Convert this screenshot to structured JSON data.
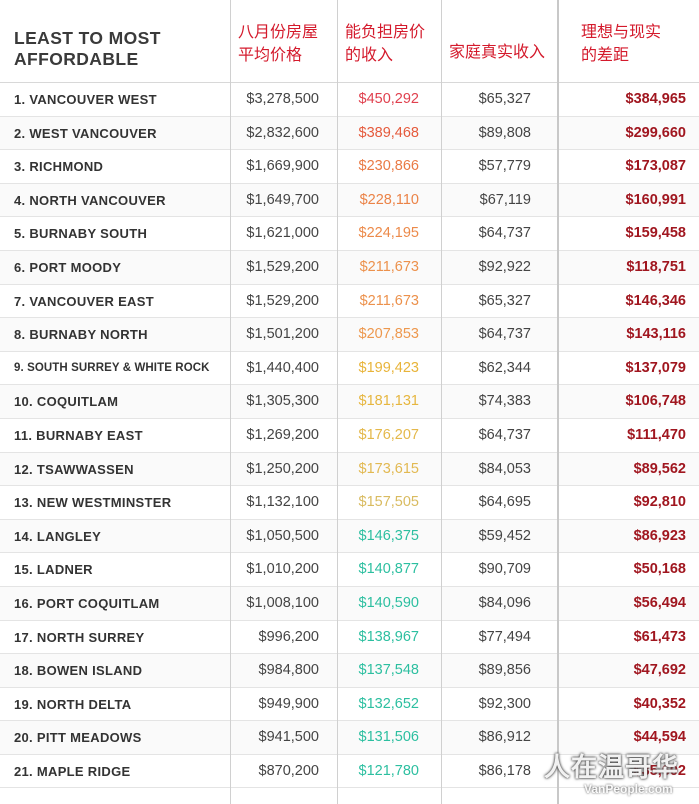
{
  "header": {
    "title_line1": "LEAST TO MOST",
    "title_line2": "AFFORDABLE",
    "col_price_line1": "八月份房屋",
    "col_price_line2": "平均价格",
    "col_afford_line1": "能负担房价",
    "col_afford_line2": "的收入",
    "col_income": "家庭真实收入",
    "col_gap_line1": "理想与现实",
    "col_gap_line2": "的差距"
  },
  "rows": [
    {
      "name": "1. VANCOUVER WEST",
      "price": "$3,278,500",
      "afford": "$450,292",
      "income": "$65,327",
      "gap": "$384,965",
      "afford_color": "#e0404e"
    },
    {
      "name": "2. WEST VANCOUVER",
      "price": "$2,832,600",
      "afford": "$389,468",
      "income": "$89,808",
      "gap": "$299,660",
      "afford_color": "#e55a3c"
    },
    {
      "name": "3. RICHMOND",
      "price": "$1,669,900",
      "afford": "$230,866",
      "income": "$57,779",
      "gap": "$173,087",
      "afford_color": "#e97a45"
    },
    {
      "name": "4. NORTH VANCOUVER",
      "price": "$1,649,700",
      "afford": "$228,110",
      "income": "$67,119",
      "gap": "$160,991",
      "afford_color": "#eb8347"
    },
    {
      "name": "5. BURNABY SOUTH",
      "price": "$1,621,000",
      "afford": "$224,195",
      "income": "$64,737",
      "gap": "$159,458",
      "afford_color": "#ec8a4a"
    },
    {
      "name": "6. PORT MOODY",
      "price": "$1,529,200",
      "afford": "$211,673",
      "income": "$92,922",
      "gap": "$118,751",
      "afford_color": "#ec914c"
    },
    {
      "name": "7. VANCOUVER EAST",
      "price": "$1,529,200",
      "afford": "$211,673",
      "income": "$65,327",
      "gap": "$146,346",
      "afford_color": "#ec914c"
    },
    {
      "name": "8. BURNABY NORTH",
      "price": "$1,501,200",
      "afford": "$207,853",
      "income": "$64,737",
      "gap": "$143,116",
      "afford_color": "#ed984e"
    },
    {
      "name": "9. SOUTH SURREY & WHITE ROCK",
      "price": "$1,440,400",
      "afford": "$199,423",
      "income": "$62,344",
      "gap": "$137,079",
      "afford_color": "#e8b43a",
      "small": true
    },
    {
      "name": "10. COQUITLAM",
      "price": "$1,305,300",
      "afford": "$181,131",
      "income": "$74,383",
      "gap": "$106,748",
      "afford_color": "#e6b63f"
    },
    {
      "name": "11. BURNABY EAST",
      "price": "$1,269,200",
      "afford": "$176,207",
      "income": "$64,737",
      "gap": "$111,470",
      "afford_color": "#e4b84a"
    },
    {
      "name": "12. TSAWWASSEN",
      "price": "$1,250,200",
      "afford": "$173,615",
      "income": "$84,053",
      "gap": "$89,562",
      "afford_color": "#e2b952"
    },
    {
      "name": "13. NEW WESTMINSTER",
      "price": "$1,132,100",
      "afford": "$157,505",
      "income": "$64,695",
      "gap": "$92,810",
      "afford_color": "#d9bb60"
    },
    {
      "name": "14. LANGLEY",
      "price": "$1,050,500",
      "afford": "$146,375",
      "income": "$59,452",
      "gap": "$86,923",
      "afford_color": "#2cbfa0"
    },
    {
      "name": "15. LADNER",
      "price": "$1,010,200",
      "afford": "$140,877",
      "income": "$90,709",
      "gap": "$50,168",
      "afford_color": "#2cbfa0"
    },
    {
      "name": "16. PORT COQUITLAM",
      "price": "$1,008,100",
      "afford": "$140,590",
      "income": "$84,096",
      "gap": "$56,494",
      "afford_color": "#2cbfa0"
    },
    {
      "name": "17. NORTH SURREY",
      "price": "$996,200",
      "afford": "$138,967",
      "income": "$77,494",
      "gap": "$61,473",
      "afford_color": "#2cbfa0"
    },
    {
      "name": "18. BOWEN ISLAND",
      "price": "$984,800",
      "afford": "$137,548",
      "income": "$89,856",
      "gap": "$47,692",
      "afford_color": "#2cbfa0"
    },
    {
      "name": "19. NORTH DELTA",
      "price": "$949,900",
      "afford": "$132,652",
      "income": "$92,300",
      "gap": "$40,352",
      "afford_color": "#2cbfa0"
    },
    {
      "name": "20. PITT MEADOWS",
      "price": "$941,500",
      "afford": "$131,506",
      "income": "$86,912",
      "gap": "$44,594",
      "afford_color": "#2cbfa0"
    },
    {
      "name": "21. MAPLE RIDGE",
      "price": "$870,200",
      "afford": "$121,780",
      "income": "$86,178",
      "gap": "$35,602",
      "afford_color": "#2cbfa0"
    }
  ],
  "watermark": {
    "text": "人在温哥华",
    "sub": "VanPeople.com"
  }
}
